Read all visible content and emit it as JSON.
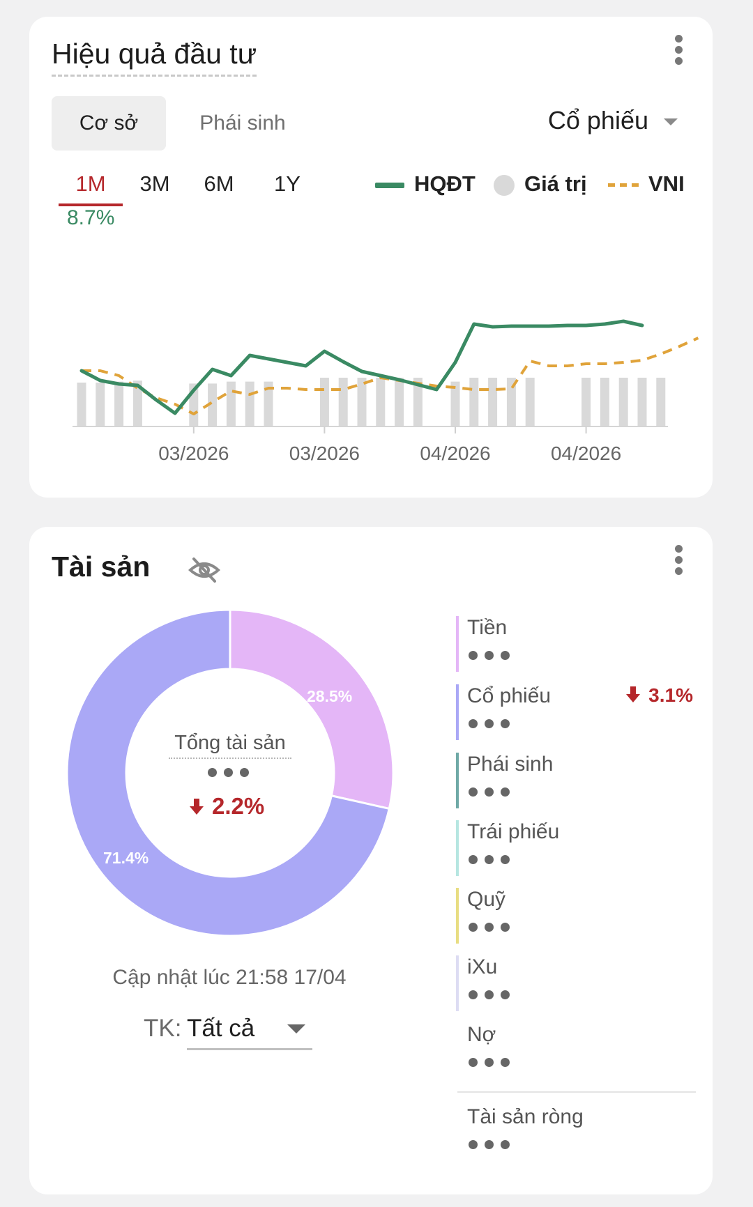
{
  "performance": {
    "title": "Hiệu quả đầu tư",
    "tabs": [
      "Cơ sở",
      "Phái sinh"
    ],
    "active_tab": "Cơ sở",
    "asset_type": "Cổ phiếu",
    "periods": [
      "1M",
      "3M",
      "6M",
      "1Y"
    ],
    "active_period": "1M",
    "return_value": "8.7%",
    "legend": {
      "hqdt": "HQĐT",
      "giatri": "Giá trị",
      "vni": "VNI"
    },
    "colors": {
      "hqdt": "#3a8a63",
      "giatri": "#d9d9d9",
      "vni": "#e0a33a",
      "negative": "#b5272b"
    }
  },
  "chart_data": {
    "type": "line",
    "x_tick_labels": [
      "03/2026",
      "03/2026",
      "04/2026",
      "04/2026"
    ],
    "x_tick_positions": [
      6,
      13,
      20,
      27
    ],
    "series": [
      {
        "name": "HQĐT",
        "style": "solid",
        "values": [
          8.0,
          6.6,
          6.1,
          5.9,
          3.8,
          1.9,
          5.2,
          8.2,
          7.3,
          10.2,
          9.7,
          9.2,
          8.7,
          10.8,
          9.3,
          7.9,
          7.3,
          6.7,
          6.0,
          5.3,
          9.2,
          14.7,
          14.3,
          14.4,
          14.4,
          14.4,
          14.5,
          14.5,
          14.7,
          15.1,
          14.5
        ]
      },
      {
        "name": "VNI",
        "style": "dashed",
        "values": [
          8.0,
          8.0,
          7.3,
          5.5,
          4.1,
          3.2,
          1.8,
          3.5,
          5.1,
          4.6,
          5.5,
          5.5,
          5.3,
          5.3,
          5.3,
          6.1,
          7.0,
          6.6,
          6.2,
          5.8,
          5.6,
          5.3,
          5.3,
          5.4,
          9.4,
          8.7,
          8.7,
          9.0,
          9.0,
          9.2,
          9.5,
          10.4,
          11.5,
          12.7
        ]
      },
      {
        "name": "Giá trị",
        "style": "bars",
        "bar_positions": [
          0,
          1,
          2,
          3,
          6,
          7,
          8,
          9,
          10,
          13,
          14,
          15,
          16,
          17,
          18,
          20,
          21,
          22,
          23,
          24,
          27,
          28,
          29,
          30,
          31
        ],
        "values": [
          0.45,
          0.45,
          0.46,
          0.47,
          0.44,
          0.44,
          0.46,
          0.46,
          0.46,
          0.5,
          0.5,
          0.5,
          0.5,
          0.5,
          0.5,
          0.46,
          0.5,
          0.5,
          0.5,
          0.5,
          0.5,
          0.5,
          0.5,
          0.5,
          0.5
        ]
      }
    ]
  },
  "assets": {
    "title": "Tài sản",
    "center_label": "Tổng tài sản",
    "center_change": "2.2%",
    "pie": [
      {
        "name": "Tiền",
        "value": 28.5,
        "label": "28.5%",
        "color": "#e4b6f7"
      },
      {
        "name": "Cổ phiếu",
        "value": 71.4,
        "label": "71.4%",
        "color": "#aaa8f6"
      }
    ],
    "updated": "Cập nhật lúc 21:58 17/04",
    "account_label": "TK:",
    "account_value": "Tất cả",
    "items": [
      {
        "name": "Tiền",
        "color": "#e4b6f7"
      },
      {
        "name": "Cổ phiếu",
        "color": "#aaa8f6",
        "change": "3.1%"
      },
      {
        "name": "Phái sinh",
        "color": "#6fa9a6"
      },
      {
        "name": "Trái phiếu",
        "color": "#b6e6e1"
      },
      {
        "name": "Quỹ",
        "color": "#e8dd82"
      },
      {
        "name": "iXu",
        "color": "#dddcf3"
      },
      {
        "name": "Nợ",
        "color": "#ffffff"
      }
    ],
    "net_label": "Tài sản ròng"
  }
}
